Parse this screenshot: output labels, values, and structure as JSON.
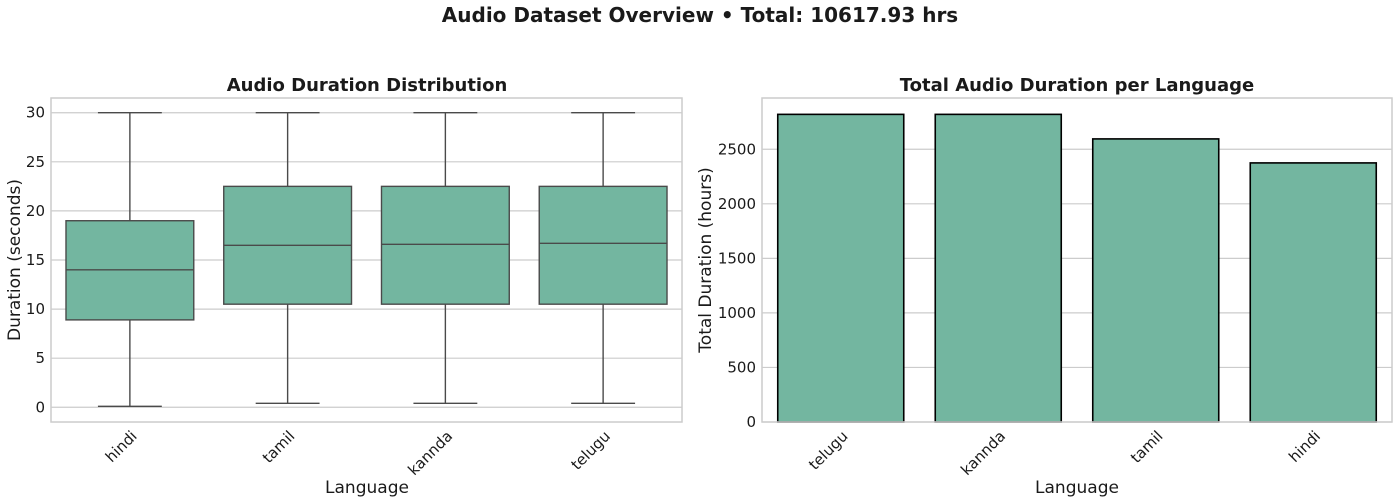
{
  "figure": {
    "title": "Audio Dataset Overview • Total: 10617.93 hrs"
  },
  "colors": {
    "fill": "#73b6a0",
    "box_edge": "#4a4a4a",
    "bar_edge": "#000000",
    "grid": "#cccccc"
  },
  "chart_data": [
    {
      "type": "box",
      "title": "Audio Duration Distribution",
      "xlabel": "Language",
      "ylabel": "Duration (seconds)",
      "categories": [
        "hindi",
        "tamil",
        "kannda",
        "telugu"
      ],
      "boxes": [
        {
          "name": "hindi",
          "min": 0.1,
          "q1": 8.9,
          "median": 14.0,
          "q3": 19.0,
          "max": 30.0
        },
        {
          "name": "tamil",
          "min": 0.4,
          "q1": 10.5,
          "median": 16.5,
          "q3": 22.5,
          "max": 30.0
        },
        {
          "name": "kannda",
          "min": 0.4,
          "q1": 10.5,
          "median": 16.6,
          "q3": 22.5,
          "max": 30.0
        },
        {
          "name": "telugu",
          "min": 0.4,
          "q1": 10.5,
          "median": 16.7,
          "q3": 22.5,
          "max": 30.0
        }
      ],
      "yticks": [
        0,
        5,
        10,
        15,
        20,
        25,
        30
      ],
      "ylim": [
        -1.5,
        31.5
      ],
      "grid": true
    },
    {
      "type": "bar",
      "title": "Total Audio Duration per Language",
      "xlabel": "Language",
      "ylabel": "Total Duration (hours)",
      "categories": [
        "telugu",
        "kannda",
        "tamil",
        "hindi"
      ],
      "values": [
        2820,
        2820,
        2595,
        2375
      ],
      "yticks": [
        0,
        500,
        1000,
        1500,
        2000,
        2500
      ],
      "ylim": [
        0,
        2970
      ],
      "grid": true
    }
  ]
}
